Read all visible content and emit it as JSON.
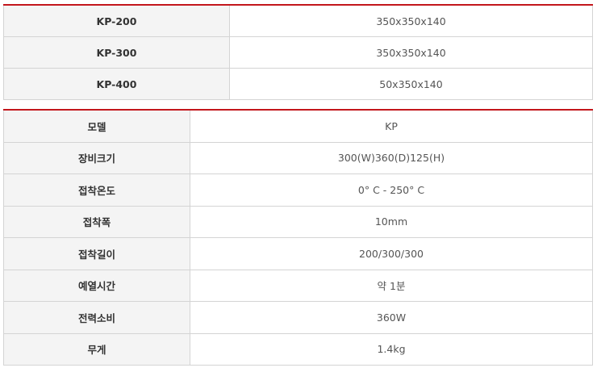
{
  "models_table": {
    "rows": [
      {
        "model": "KP-200",
        "size": "350x350x140"
      },
      {
        "model": "KP-300",
        "size": "350x350x140"
      },
      {
        "model": "KP-400",
        "size": "50x350x140"
      }
    ]
  },
  "spec_table": {
    "rows": [
      {
        "label": "모델",
        "value": "KP"
      },
      {
        "label": "장비크기",
        "value": "300(W)360(D)125(H)"
      },
      {
        "label": "접착온도",
        "value": "0° C - 250° C"
      },
      {
        "label": "접착폭",
        "value": "10mm"
      },
      {
        "label": "접착길이",
        "value": "200/300/300"
      },
      {
        "label": "예열시간",
        "value": "약 1분"
      },
      {
        "label": "전력소비",
        "value": "360W"
      },
      {
        "label": "무게",
        "value": "1.4kg"
      }
    ]
  },
  "colors": {
    "accent": "#c3161c",
    "header_bg": "#f4f4f4"
  }
}
